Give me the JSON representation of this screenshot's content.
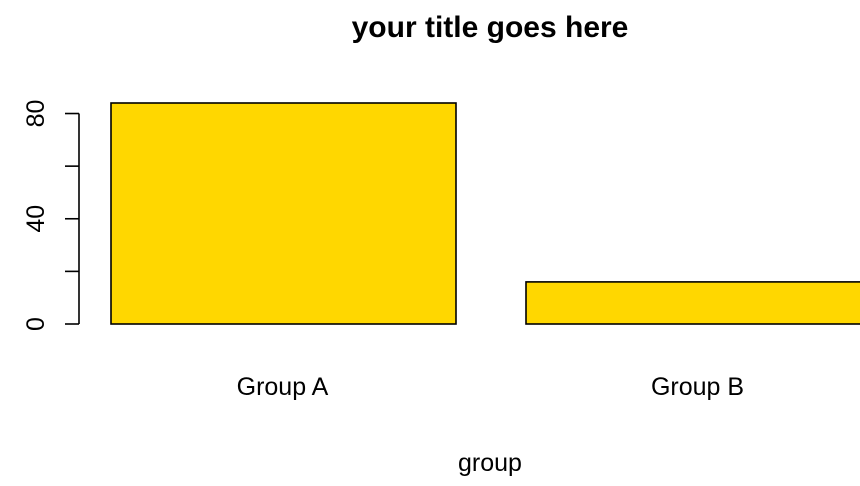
{
  "chart_data": {
    "type": "bar",
    "title": "your title goes here",
    "xlabel": "group",
    "ylabel": "",
    "categories": [
      "Group A",
      "Group B"
    ],
    "values": [
      84,
      16
    ],
    "bar_color": "#FFD700",
    "bar_stroke": "#000000",
    "yticks": [
      0,
      20,
      40,
      60,
      80
    ],
    "ytick_labels": [
      "0",
      "",
      "40",
      "",
      "80"
    ],
    "ylim": [
      0,
      84
    ],
    "grid": false,
    "legend": "none"
  }
}
